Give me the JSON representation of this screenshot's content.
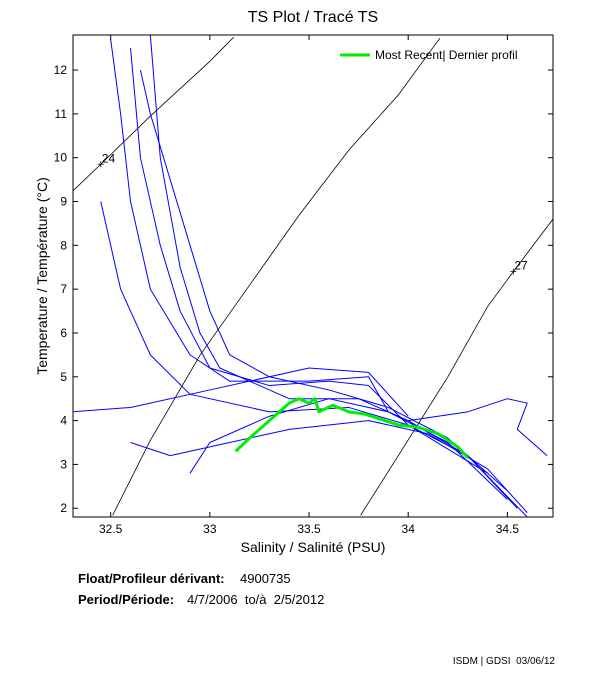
{
  "chart_data": {
    "type": "line",
    "title": "TS Plot / Tracé TS",
    "x_label": "Salinity / Salinité (PSU)",
    "y_label": "Temperature / Température (°C)",
    "xlim": [
      32.31,
      34.73
    ],
    "ylim": [
      1.8,
      12.8
    ],
    "xticks": [
      32.5,
      33,
      33.5,
      34,
      34.5
    ],
    "yticks": [
      2,
      3,
      4,
      5,
      6,
      7,
      8,
      9,
      10,
      11,
      12
    ],
    "legend_position": "upper right",
    "series": [
      {
        "color": "#0000ff",
        "x": [
          32.6,
          32.65,
          32.75,
          32.85,
          33.0,
          33.3,
          33.6,
          33.8,
          34.0,
          34.3,
          34.6
        ],
        "values": [
          12.5,
          10,
          8,
          6.5,
          5.2,
          4.8,
          4.9,
          4.8,
          3.9,
          3.2,
          1.8
        ]
      },
      {
        "color": "#0000ff",
        "x": [
          32.5,
          32.55,
          32.6,
          32.7,
          32.9,
          33.1,
          33.5,
          33.8,
          33.9,
          34.2,
          34.5
        ],
        "values": [
          12.7,
          11,
          9,
          7,
          5.5,
          4.9,
          4.9,
          5.0,
          4.2,
          3.5,
          2.2
        ]
      },
      {
        "color": "#0000ff",
        "x": [
          32.7,
          32.75,
          32.85,
          32.95,
          33.05,
          33.4,
          33.75,
          34.0,
          34.3,
          34.55
        ],
        "values": [
          12.8,
          10,
          7.5,
          6,
          5.2,
          4.5,
          4.5,
          4.0,
          3.2,
          2.0
        ]
      },
      {
        "color": "#0000ff",
        "x": [
          32.45,
          32.55,
          32.7,
          32.9,
          33.3,
          33.7,
          34.0,
          34.4
        ],
        "values": [
          9,
          7,
          5.5,
          4.6,
          4.2,
          4.3,
          3.9,
          2.8
        ]
      },
      {
        "color": "#0000ff",
        "x": [
          32.6,
          32.8,
          33.0,
          33.4,
          33.8,
          34.1,
          34.4,
          34.6
        ],
        "values": [
          3.5,
          3.2,
          3.4,
          3.8,
          4.0,
          3.7,
          2.9,
          1.9
        ]
      },
      {
        "color": "#0000ff",
        "x": [
          32.9,
          33.0,
          33.3,
          33.6,
          33.9,
          34.2
        ],
        "values": [
          2.8,
          3.5,
          4.1,
          4.5,
          4.2,
          3.5
        ]
      },
      {
        "color": "#0000ff",
        "x": [
          32.3,
          32.6,
          33.0,
          33.5,
          33.8,
          34.0
        ],
        "values": [
          4.2,
          4.3,
          4.7,
          5.2,
          5.1,
          4.1
        ]
      },
      {
        "color": "#0000ff",
        "x": [
          32.65,
          32.7,
          32.8,
          32.9,
          33.0,
          33.1,
          33.3,
          33.6,
          33.9,
          34.2,
          34.5
        ],
        "values": [
          12.0,
          11,
          9.5,
          8,
          6.5,
          5.5,
          5.0,
          4.7,
          4.3,
          3.6,
          2.4
        ]
      },
      {
        "color": "#0000ff",
        "x": [
          34.0,
          34.3,
          34.5,
          34.6,
          34.55,
          34.7
        ],
        "values": [
          4.0,
          4.2,
          4.5,
          4.4,
          3.8,
          3.2
        ]
      },
      {
        "name": "Most Recent| Dernier profil",
        "color": "#00ee00",
        "x": [
          33.13,
          33.2,
          33.3,
          33.4,
          33.45,
          33.5,
          33.53,
          33.55,
          33.62,
          33.7,
          33.78,
          33.85,
          33.95,
          34.05,
          34.15,
          34.25,
          34.3
        ],
        "values": [
          3.3,
          3.6,
          4.0,
          4.4,
          4.5,
          4.4,
          4.5,
          4.2,
          4.35,
          4.2,
          4.15,
          4.05,
          3.9,
          3.85,
          3.7,
          3.4,
          3.15
        ]
      }
    ],
    "contours": [
      {
        "label": "24",
        "x": [
          32.3,
          32.45,
          32.7,
          33.0,
          33.12
        ],
        "y": [
          9.2,
          9.85,
          10.95,
          12.2,
          12.75
        ]
      },
      {
        "x": [
          32.51,
          32.7,
          32.95,
          33.2,
          33.45,
          33.7,
          33.95,
          34.16
        ],
        "y": [
          1.84,
          3.55,
          5.49,
          7.09,
          8.69,
          10.17,
          11.43,
          12.73
        ]
      },
      {
        "label": "27",
        "x": [
          34.73,
          34.53,
          34.4,
          34.2,
          33.95,
          33.76
        ],
        "y": [
          8.6,
          7.4,
          6.6,
          5.0,
          3.2,
          1.84
        ]
      }
    ]
  },
  "footer": {
    "float_label": "Float/Profileur dérivant:",
    "float_id": "4900735",
    "period_label": "Period/Période:",
    "period": "4/7/2006  to/à  2/5/2012",
    "credit": "ISDM | GDSI  03/06/12"
  }
}
